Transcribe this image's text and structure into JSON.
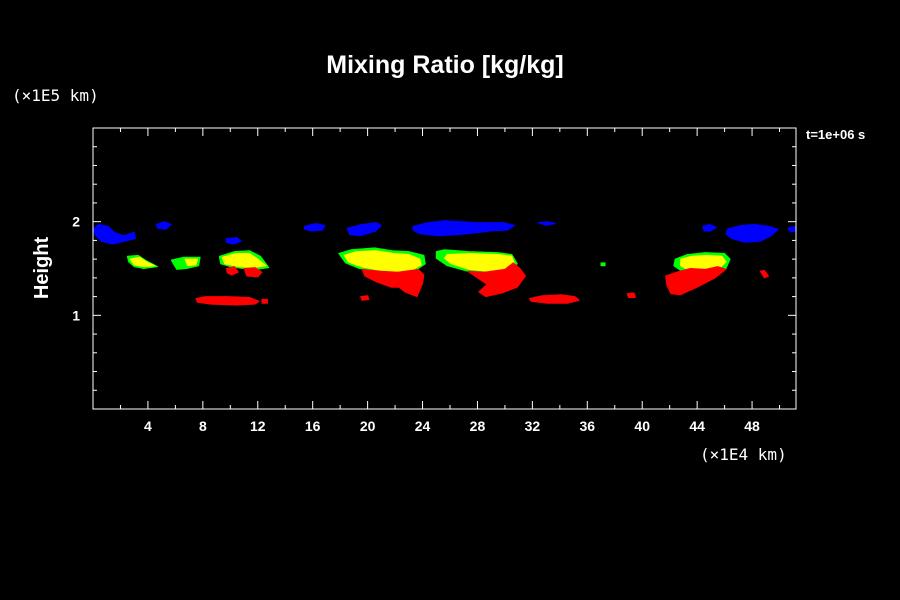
{
  "chart_data": {
    "type": "heatmap",
    "title": "Mixing Ratio [kg/kg]",
    "xlabel": "",
    "ylabel": "Height",
    "x_unit_label": "(×1E4 km)",
    "y_unit_label": "(×1E5 km)",
    "time_label": "t=1e+06 s",
    "xlim": [
      0,
      51.2
    ],
    "ylim": [
      0,
      3.0
    ],
    "x_ticks": [
      4,
      8,
      12,
      16,
      20,
      24,
      28,
      32,
      36,
      40,
      44,
      48
    ],
    "x_tick_labels": [
      "4",
      "8",
      "12",
      "16",
      "20",
      "24",
      "28",
      "32",
      "36",
      "40",
      "44",
      "48"
    ],
    "y_ticks": [
      1,
      2
    ],
    "y_tick_labels": [
      "1",
      "2"
    ],
    "grid": false,
    "colors": {
      "background": "#000000",
      "frame": "#ffffff",
      "level_blue": "#0000ff",
      "level_green": "#00ff00",
      "level_yellow": "#ffff00",
      "level_red": "#ff0000"
    },
    "regions": [
      {
        "level": "blue",
        "points": [
          [
            0.0,
            1.92
          ],
          [
            0.4,
            1.97
          ],
          [
            1.1,
            1.95
          ],
          [
            1.6,
            1.88
          ],
          [
            2.3,
            1.85
          ],
          [
            3.0,
            1.89
          ],
          [
            3.1,
            1.82
          ],
          [
            2.3,
            1.79
          ],
          [
            1.4,
            1.76
          ],
          [
            0.6,
            1.79
          ],
          [
            0.2,
            1.85
          ]
        ]
      },
      {
        "level": "blue",
        "points": [
          [
            4.6,
            1.97
          ],
          [
            5.2,
            2.0
          ],
          [
            5.7,
            1.97
          ],
          [
            5.3,
            1.92
          ],
          [
            4.7,
            1.93
          ]
        ]
      },
      {
        "level": "blue",
        "points": [
          [
            9.7,
            1.82
          ],
          [
            10.5,
            1.83
          ],
          [
            10.8,
            1.79
          ],
          [
            10.2,
            1.76
          ],
          [
            9.7,
            1.78
          ]
        ]
      },
      {
        "level": "blue",
        "points": [
          [
            15.4,
            1.95
          ],
          [
            16.2,
            1.98
          ],
          [
            16.9,
            1.96
          ],
          [
            16.7,
            1.91
          ],
          [
            15.9,
            1.9
          ],
          [
            15.4,
            1.92
          ]
        ]
      },
      {
        "level": "blue",
        "points": [
          [
            18.5,
            1.93
          ],
          [
            19.6,
            1.97
          ],
          [
            20.6,
            1.99
          ],
          [
            21.0,
            1.96
          ],
          [
            20.6,
            1.9
          ],
          [
            19.5,
            1.85
          ],
          [
            18.7,
            1.86
          ]
        ]
      },
      {
        "level": "blue",
        "points": [
          [
            23.3,
            1.95
          ],
          [
            24.4,
            1.99
          ],
          [
            25.6,
            2.01
          ],
          [
            26.9,
            2.0
          ],
          [
            27.9,
            1.99
          ],
          [
            28.8,
            1.99
          ],
          [
            29.9,
            1.99
          ],
          [
            30.7,
            1.96
          ],
          [
            30.2,
            1.91
          ],
          [
            28.9,
            1.9
          ],
          [
            27.9,
            1.88
          ],
          [
            26.5,
            1.86
          ],
          [
            25.1,
            1.85
          ],
          [
            23.8,
            1.87
          ],
          [
            23.3,
            1.91
          ]
        ]
      },
      {
        "level": "blue",
        "points": [
          [
            32.4,
            1.99
          ],
          [
            33.1,
            2.0
          ],
          [
            33.7,
            1.98
          ],
          [
            33.0,
            1.96
          ]
        ]
      },
      {
        "level": "blue",
        "points": [
          [
            44.4,
            1.95
          ],
          [
            44.9,
            1.97
          ],
          [
            45.4,
            1.94
          ],
          [
            45.0,
            1.9
          ],
          [
            44.5,
            1.9
          ]
        ]
      },
      {
        "level": "blue",
        "points": [
          [
            46.2,
            1.92
          ],
          [
            47.2,
            1.96
          ],
          [
            48.2,
            1.97
          ],
          [
            49.2,
            1.95
          ],
          [
            49.9,
            1.92
          ],
          [
            49.4,
            1.85
          ],
          [
            48.6,
            1.79
          ],
          [
            47.5,
            1.78
          ],
          [
            46.5,
            1.82
          ],
          [
            46.1,
            1.87
          ]
        ]
      },
      {
        "level": "blue",
        "points": [
          [
            50.6,
            1.93
          ],
          [
            51.1,
            1.95
          ],
          [
            51.2,
            1.9
          ],
          [
            50.8,
            1.89
          ]
        ]
      },
      {
        "level": "green",
        "points": [
          [
            2.5,
            1.63
          ],
          [
            3.3,
            1.64
          ],
          [
            3.8,
            1.59
          ],
          [
            4.7,
            1.52
          ],
          [
            3.7,
            1.5
          ],
          [
            3.0,
            1.52
          ],
          [
            2.6,
            1.57
          ]
        ]
      },
      {
        "level": "green",
        "points": [
          [
            5.7,
            1.59
          ],
          [
            6.6,
            1.62
          ],
          [
            7.8,
            1.62
          ],
          [
            7.7,
            1.53
          ],
          [
            6.8,
            1.5
          ],
          [
            6.1,
            1.49
          ],
          [
            5.9,
            1.54
          ]
        ]
      },
      {
        "level": "green",
        "points": [
          [
            9.2,
            1.63
          ],
          [
            10.3,
            1.68
          ],
          [
            11.4,
            1.69
          ],
          [
            12.2,
            1.63
          ],
          [
            12.8,
            1.51
          ],
          [
            11.9,
            1.49
          ],
          [
            10.9,
            1.5
          ],
          [
            10.0,
            1.52
          ],
          [
            9.3,
            1.55
          ]
        ]
      },
      {
        "level": "green",
        "points": [
          [
            17.9,
            1.66
          ],
          [
            18.8,
            1.7
          ],
          [
            20.5,
            1.72
          ],
          [
            21.8,
            1.69
          ],
          [
            23.0,
            1.68
          ],
          [
            24.1,
            1.64
          ],
          [
            24.2,
            1.55
          ],
          [
            23.4,
            1.47
          ],
          [
            22.3,
            1.45
          ],
          [
            21.0,
            1.46
          ],
          [
            19.4,
            1.5
          ],
          [
            18.4,
            1.56
          ]
        ]
      },
      {
        "level": "green",
        "points": [
          [
            25.0,
            1.68
          ],
          [
            25.6,
            1.7
          ],
          [
            27.4,
            1.68
          ],
          [
            29.5,
            1.67
          ],
          [
            30.5,
            1.65
          ],
          [
            30.9,
            1.55
          ],
          [
            30.2,
            1.48
          ],
          [
            28.9,
            1.45
          ],
          [
            27.3,
            1.47
          ],
          [
            25.8,
            1.53
          ],
          [
            25.0,
            1.61
          ]
        ]
      },
      {
        "level": "green",
        "points": [
          [
            37.0,
            1.56
          ],
          [
            37.3,
            1.56
          ],
          [
            37.3,
            1.53
          ],
          [
            37.0,
            1.53
          ]
        ]
      },
      {
        "level": "green",
        "points": [
          [
            42.4,
            1.6
          ],
          [
            43.3,
            1.65
          ],
          [
            44.6,
            1.67
          ],
          [
            46.0,
            1.66
          ],
          [
            46.4,
            1.6
          ],
          [
            46.1,
            1.5
          ],
          [
            45.2,
            1.43
          ],
          [
            44.0,
            1.44
          ],
          [
            42.8,
            1.48
          ],
          [
            42.3,
            1.53
          ]
        ]
      },
      {
        "level": "yellow",
        "points": [
          [
            2.7,
            1.6
          ],
          [
            3.4,
            1.62
          ],
          [
            3.9,
            1.57
          ],
          [
            4.5,
            1.53
          ],
          [
            3.7,
            1.52
          ],
          [
            3.0,
            1.54
          ]
        ]
      },
      {
        "level": "yellow",
        "points": [
          [
            6.7,
            1.6
          ],
          [
            7.6,
            1.6
          ],
          [
            7.5,
            1.54
          ],
          [
            6.9,
            1.53
          ]
        ]
      },
      {
        "level": "yellow",
        "points": [
          [
            9.4,
            1.62
          ],
          [
            10.4,
            1.66
          ],
          [
            11.4,
            1.66
          ],
          [
            12.0,
            1.6
          ],
          [
            12.6,
            1.53
          ],
          [
            11.7,
            1.51
          ],
          [
            10.6,
            1.52
          ],
          [
            9.6,
            1.55
          ]
        ]
      },
      {
        "level": "yellow",
        "points": [
          [
            18.3,
            1.64
          ],
          [
            19.2,
            1.68
          ],
          [
            20.6,
            1.69
          ],
          [
            21.9,
            1.66
          ],
          [
            23.0,
            1.65
          ],
          [
            23.8,
            1.6
          ],
          [
            23.9,
            1.54
          ],
          [
            23.2,
            1.48
          ],
          [
            22.1,
            1.47
          ],
          [
            20.9,
            1.48
          ],
          [
            19.5,
            1.52
          ],
          [
            18.6,
            1.57
          ]
        ]
      },
      {
        "level": "yellow",
        "points": [
          [
            25.8,
            1.65
          ],
          [
            27.4,
            1.66
          ],
          [
            29.5,
            1.65
          ],
          [
            30.5,
            1.63
          ],
          [
            30.7,
            1.55
          ],
          [
            30.0,
            1.49
          ],
          [
            28.8,
            1.47
          ],
          [
            27.4,
            1.49
          ],
          [
            26.1,
            1.55
          ],
          [
            25.6,
            1.61
          ]
        ]
      },
      {
        "level": "yellow",
        "points": [
          [
            42.8,
            1.6
          ],
          [
            43.6,
            1.63
          ],
          [
            44.7,
            1.64
          ],
          [
            45.8,
            1.63
          ],
          [
            46.1,
            1.57
          ],
          [
            45.6,
            1.5
          ],
          [
            44.6,
            1.46
          ],
          [
            43.5,
            1.47
          ],
          [
            42.8,
            1.53
          ]
        ]
      },
      {
        "level": "red",
        "points": [
          [
            9.7,
            1.5
          ],
          [
            10.3,
            1.52
          ],
          [
            10.6,
            1.46
          ],
          [
            10.1,
            1.43
          ],
          [
            9.8,
            1.45
          ]
        ]
      },
      {
        "level": "red",
        "points": [
          [
            11.0,
            1.5
          ],
          [
            11.8,
            1.51
          ],
          [
            12.3,
            1.46
          ],
          [
            12.0,
            1.41
          ],
          [
            11.2,
            1.42
          ]
        ]
      },
      {
        "level": "red",
        "points": [
          [
            7.5,
            1.18
          ],
          [
            8.2,
            1.2
          ],
          [
            9.8,
            1.2
          ],
          [
            11.4,
            1.19
          ],
          [
            12.1,
            1.15
          ],
          [
            11.8,
            1.12
          ],
          [
            10.4,
            1.11
          ],
          [
            8.6,
            1.12
          ],
          [
            7.6,
            1.14
          ]
        ]
      },
      {
        "level": "red",
        "points": [
          [
            12.3,
            1.17
          ],
          [
            12.7,
            1.17
          ],
          [
            12.7,
            1.13
          ],
          [
            12.3,
            1.13
          ]
        ]
      },
      {
        "level": "red",
        "points": [
          [
            19.6,
            1.49
          ],
          [
            21.0,
            1.47
          ],
          [
            22.2,
            1.46
          ],
          [
            23.7,
            1.49
          ],
          [
            24.1,
            1.43
          ],
          [
            24.0,
            1.34
          ],
          [
            23.6,
            1.2
          ],
          [
            22.7,
            1.25
          ],
          [
            22.3,
            1.3
          ],
          [
            21.7,
            1.3
          ],
          [
            20.6,
            1.36
          ],
          [
            19.8,
            1.42
          ]
        ]
      },
      {
        "level": "red",
        "points": [
          [
            19.5,
            1.2
          ],
          [
            20.0,
            1.21
          ],
          [
            20.1,
            1.17
          ],
          [
            19.6,
            1.16
          ]
        ]
      },
      {
        "level": "red",
        "points": [
          [
            27.3,
            1.47
          ],
          [
            28.5,
            1.46
          ],
          [
            30.0,
            1.49
          ],
          [
            30.6,
            1.56
          ],
          [
            31.1,
            1.5
          ],
          [
            31.5,
            1.42
          ],
          [
            30.9,
            1.3
          ],
          [
            29.8,
            1.24
          ],
          [
            28.6,
            1.2
          ],
          [
            28.1,
            1.25
          ],
          [
            28.7,
            1.33
          ],
          [
            27.8,
            1.42
          ]
        ]
      },
      {
        "level": "red",
        "points": [
          [
            31.8,
            1.18
          ],
          [
            32.7,
            1.21
          ],
          [
            34.1,
            1.22
          ],
          [
            35.1,
            1.2
          ],
          [
            35.4,
            1.16
          ],
          [
            34.6,
            1.13
          ],
          [
            33.1,
            1.13
          ],
          [
            31.9,
            1.15
          ]
        ]
      },
      {
        "level": "red",
        "points": [
          [
            38.9,
            1.23
          ],
          [
            39.4,
            1.24
          ],
          [
            39.5,
            1.19
          ],
          [
            39.0,
            1.19
          ]
        ]
      },
      {
        "level": "red",
        "points": [
          [
            41.7,
            1.42
          ],
          [
            42.7,
            1.47
          ],
          [
            43.5,
            1.5
          ],
          [
            44.6,
            1.49
          ],
          [
            45.5,
            1.52
          ],
          [
            46.1,
            1.49
          ],
          [
            45.3,
            1.4
          ],
          [
            44.0,
            1.3
          ],
          [
            42.8,
            1.22
          ],
          [
            42.1,
            1.23
          ],
          [
            41.8,
            1.32
          ]
        ]
      },
      {
        "level": "red",
        "points": [
          [
            48.6,
            1.47
          ],
          [
            48.9,
            1.48
          ],
          [
            49.2,
            1.42
          ],
          [
            48.9,
            1.4
          ]
        ]
      }
    ]
  }
}
